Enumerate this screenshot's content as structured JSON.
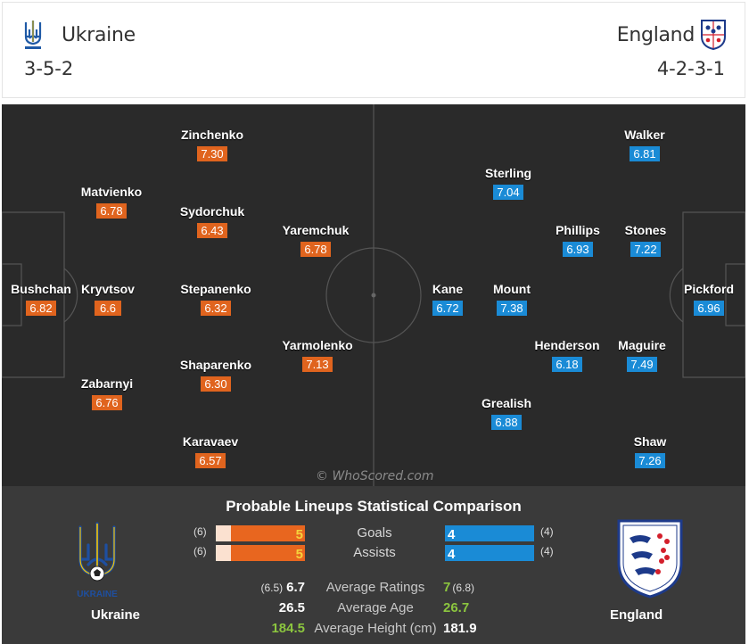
{
  "home": {
    "name": "Ukraine",
    "formation": "3-5-2",
    "players": [
      {
        "name": "Bushchan",
        "rating": "6.82"
      },
      {
        "name": "Kryvtsov",
        "rating": "6.6"
      },
      {
        "name": "Matvienko",
        "rating": "6.78"
      },
      {
        "name": "Zabarnyi",
        "rating": "6.76"
      },
      {
        "name": "Zinchenko",
        "rating": "7.30"
      },
      {
        "name": "Sydorchuk",
        "rating": "6.43"
      },
      {
        "name": "Stepanenko",
        "rating": "6.32"
      },
      {
        "name": "Shaparenko",
        "rating": "6.30"
      },
      {
        "name": "Karavaev",
        "rating": "6.57"
      },
      {
        "name": "Yaremchuk",
        "rating": "6.78"
      },
      {
        "name": "Yarmolenko",
        "rating": "7.13"
      }
    ],
    "crest_text": "UKRAINE"
  },
  "away": {
    "name": "England",
    "formation": "4-2-3-1",
    "players": [
      {
        "name": "Pickford",
        "rating": "6.96"
      },
      {
        "name": "Walker",
        "rating": "6.81"
      },
      {
        "name": "Stones",
        "rating": "7.22"
      },
      {
        "name": "Maguire",
        "rating": "7.49"
      },
      {
        "name": "Shaw",
        "rating": "7.26"
      },
      {
        "name": "Phillips",
        "rating": "6.93"
      },
      {
        "name": "Henderson",
        "rating": "6.18"
      },
      {
        "name": "Sterling",
        "rating": "7.04"
      },
      {
        "name": "Mount",
        "rating": "7.38"
      },
      {
        "name": "Grealish",
        "rating": "6.88"
      },
      {
        "name": "Kane",
        "rating": "6.72"
      }
    ]
  },
  "watermark": "© WhoScored.com",
  "comparison": {
    "title": "Probable Lineups Statistical Comparison",
    "bars": [
      {
        "label": "Goals",
        "home_prev": "(6)",
        "home_value": "5",
        "home_fraction": 0.83,
        "away_value": "4",
        "away_prev": "(4)",
        "away_fraction": 1.0
      },
      {
        "label": "Assists",
        "home_prev": "(6)",
        "home_value": "5",
        "home_fraction": 0.83,
        "away_value": "4",
        "away_prev": "(4)",
        "away_fraction": 1.0
      }
    ],
    "numbers": [
      {
        "label": "Average Ratings",
        "home_prev": "(6.5)",
        "home_value": "6.7",
        "away_value": "7",
        "away_prev": "(6.8)",
        "better": "away"
      },
      {
        "label": "Average Age",
        "home_prev": "",
        "home_value": "26.5",
        "away_value": "26.7",
        "away_prev": "",
        "better": "away"
      },
      {
        "label": "Average Height (cm)",
        "home_prev": "",
        "home_value": "184.5",
        "away_value": "181.9",
        "away_prev": "",
        "better": "home"
      }
    ]
  },
  "colors": {
    "home_accent": "#e0641e",
    "away_accent": "#1a8bd6",
    "pitch": "#2a2a2a",
    "better_value": "#8cc63f"
  }
}
